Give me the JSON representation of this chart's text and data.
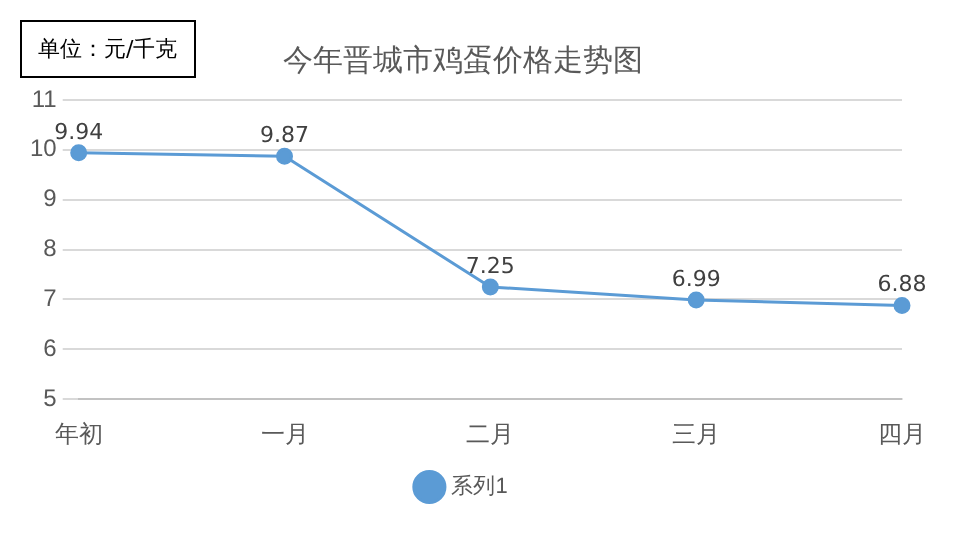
{
  "chart_data": {
    "type": "line",
    "title": "今年晋城市鸡蛋价格走势图",
    "annotations": [
      "单位：元/千克"
    ],
    "categories": [
      "年初",
      "一月",
      "二月",
      "三月",
      "四月"
    ],
    "series": [
      {
        "name": "系列1",
        "color": "#5b9bd5",
        "values": [
          9.94,
          9.87,
          7.25,
          6.99,
          6.88
        ]
      }
    ],
    "ylim": [
      5,
      11
    ],
    "yticks": [
      5,
      6,
      7,
      8,
      9,
      10,
      11
    ],
    "grid": "y",
    "legend": "bottom",
    "marker": "circle",
    "line_style": "solid",
    "data_labels": true
  }
}
